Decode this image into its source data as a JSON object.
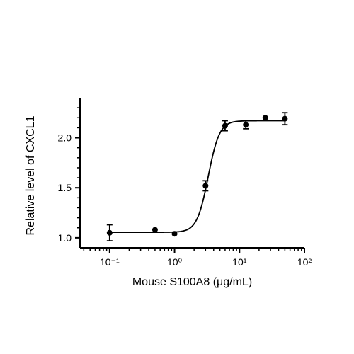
{
  "chart_data": {
    "type": "scatter",
    "title": "",
    "xlabel": "Mouse S100A8 (μg/mL)",
    "ylabel": "Relative level of CXCL1",
    "x_scale": "log",
    "xlim": [
      0.035,
      100
    ],
    "ylim": [
      0.9,
      2.4
    ],
    "x_ticks": [
      {
        "value": 0.1,
        "label": "10⁻¹"
      },
      {
        "value": 1,
        "label": "10⁰"
      },
      {
        "value": 10,
        "label": "10¹"
      },
      {
        "value": 100,
        "label": "10²"
      }
    ],
    "y_ticks": [
      {
        "value": 1.0,
        "label": "1.0"
      },
      {
        "value": 1.5,
        "label": "1.5"
      },
      {
        "value": 2.0,
        "label": "2.0"
      }
    ],
    "points": [
      {
        "x": 0.1,
        "y": 1.05,
        "err": 0.08
      },
      {
        "x": 0.5,
        "y": 1.08,
        "err": 0.0
      },
      {
        "x": 1.0,
        "y": 1.04,
        "err": 0.0
      },
      {
        "x": 3.0,
        "y": 1.52,
        "err": 0.05
      },
      {
        "x": 6.0,
        "y": 2.12,
        "err": 0.05
      },
      {
        "x": 12.5,
        "y": 2.13,
        "err": 0.04
      },
      {
        "x": 25.0,
        "y": 2.2,
        "err": 0.0
      },
      {
        "x": 50.0,
        "y": 2.19,
        "err": 0.06
      }
    ],
    "fit": {
      "model": "4PL",
      "bottom": 1.055,
      "top": 2.17,
      "ec50": 3.3,
      "hill": 5
    },
    "grid": false,
    "legend": "none"
  }
}
